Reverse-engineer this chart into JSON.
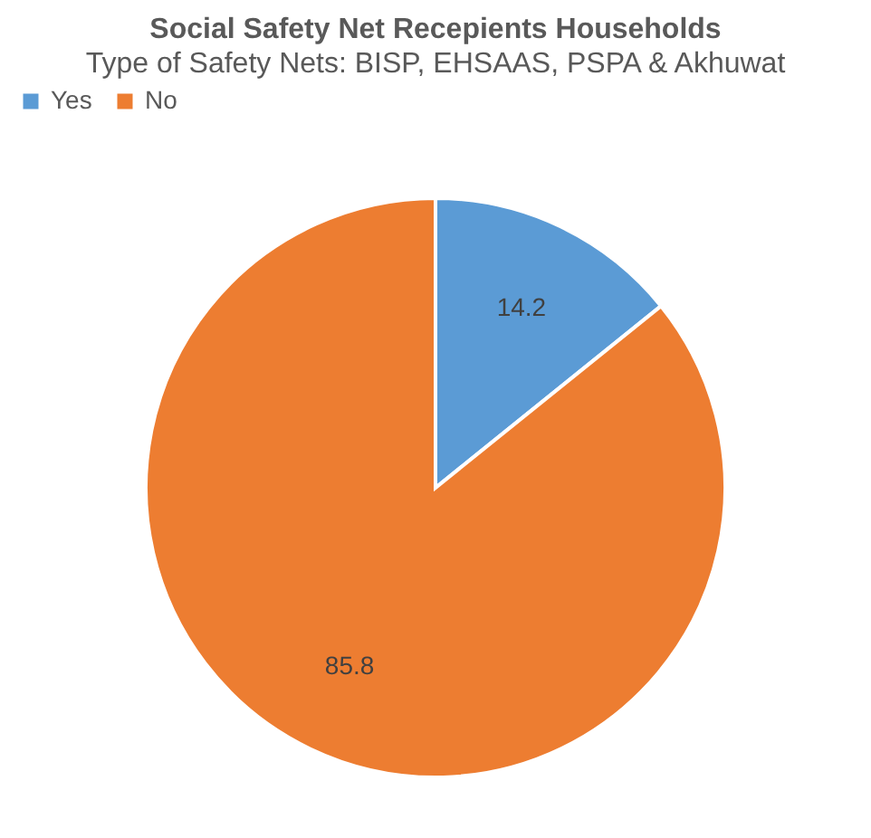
{
  "chart_data": {
    "type": "pie",
    "title": "Social Safety Net Recepients Households",
    "subtitle": "Type of Safety Nets: BISP, EHSAAS, PSPA & Akhuwat",
    "categories": [
      "Yes",
      "No"
    ],
    "values": [
      14.2,
      85.8
    ],
    "colors": [
      "#5b9bd5",
      "#ed7d31"
    ],
    "data_labels": true,
    "legend": "top"
  }
}
